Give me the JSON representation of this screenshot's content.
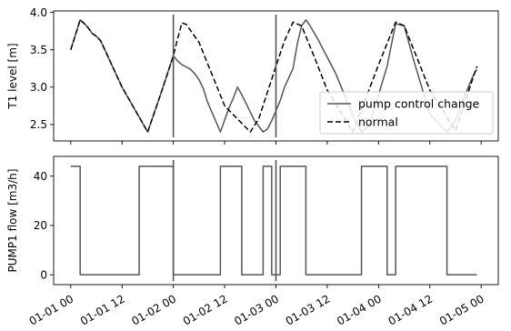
{
  "chart_data": [
    {
      "type": "line",
      "ylabel": "T1 level [m]",
      "ylim": [
        2.28,
        4.02
      ],
      "yticks": [
        "2.5",
        "3.0",
        "3.5",
        "4.0"
      ],
      "ytick_values": [
        2.5,
        3.0,
        3.5,
        4.0
      ],
      "xlim_hours": [
        -4,
        100
      ],
      "x_unit": "hours since 01-01 00",
      "events_hours": [
        24,
        48
      ],
      "legend": {
        "placement": "lower right"
      },
      "series": [
        {
          "name": "pump control change",
          "color": "#555555",
          "dash": "solid",
          "x": [
            0,
            2.2,
            3,
            4,
            5,
            6,
            7,
            12,
            16,
            18,
            21,
            24,
            25,
            26,
            27,
            28,
            29,
            30,
            31,
            32,
            35,
            37,
            38,
            39,
            40,
            43,
            45,
            46,
            47,
            49,
            50,
            52,
            53,
            54,
            55,
            56,
            57,
            58,
            62,
            64,
            66,
            68,
            69,
            70,
            74,
            76,
            78,
            80,
            82,
            84,
            88,
            90,
            92,
            94,
            95
          ],
          "y": [
            3.5,
            3.9,
            3.86,
            3.8,
            3.72,
            3.68,
            3.62,
            3.0,
            2.6,
            2.4,
            2.9,
            3.42,
            3.35,
            3.3,
            3.27,
            3.24,
            3.18,
            3.1,
            2.98,
            2.8,
            2.4,
            2.72,
            2.85,
            3.0,
            2.9,
            2.55,
            2.4,
            2.44,
            2.55,
            2.82,
            3.0,
            3.25,
            3.58,
            3.82,
            3.9,
            3.82,
            3.72,
            3.62,
            3.18,
            2.9,
            2.62,
            2.4,
            2.44,
            2.52,
            3.28,
            3.85,
            3.82,
            3.4,
            3.02,
            2.64,
            2.4,
            2.55,
            2.86,
            3.14,
            3.24
          ]
        },
        {
          "name": "normal",
          "color": "#000000",
          "dash": "dashed",
          "x": [
            0,
            2.2,
            3,
            4,
            5,
            6,
            7,
            12,
            16,
            18,
            21,
            24,
            25,
            26,
            27,
            30,
            36,
            42,
            44,
            48,
            50,
            52,
            54,
            57,
            60,
            66,
            72,
            76,
            78,
            84,
            90,
            95
          ],
          "y": [
            3.5,
            3.9,
            3.86,
            3.8,
            3.72,
            3.68,
            3.62,
            3.0,
            2.6,
            2.4,
            2.9,
            3.42,
            3.65,
            3.86,
            3.84,
            3.6,
            2.75,
            2.4,
            2.58,
            3.28,
            3.62,
            3.87,
            3.82,
            3.4,
            2.96,
            2.4,
            3.3,
            3.87,
            3.82,
            2.96,
            2.42,
            3.28
          ]
        }
      ]
    },
    {
      "type": "line",
      "ylabel": "PUMP1 flow [m3/h]",
      "ylim": [
        -4,
        48
      ],
      "yticks": [
        "0",
        "20",
        "40"
      ],
      "ytick_values": [
        0,
        20,
        40
      ],
      "xlim_hours": [
        -4,
        100
      ],
      "x_unit": "hours since 01-01 00",
      "events_hours": [
        24,
        48
      ],
      "xticks": [
        "01-01 00",
        "01-01 12",
        "01-02 00",
        "01-02 12",
        "01-03 00",
        "01-03 12",
        "01-04 00",
        "01-04 12",
        "01-05 00"
      ],
      "xtick_values": [
        0,
        12,
        24,
        36,
        48,
        60,
        72,
        84,
        96
      ],
      "series": [
        {
          "name": "pump control change",
          "color": "#555555",
          "dash": "solid",
          "x": [
            0,
            2.2,
            2.2,
            16,
            16,
            24,
            24,
            35,
            35,
            40,
            40,
            45,
            45,
            47,
            47,
            49,
            49,
            55,
            55,
            68,
            68,
            74,
            74,
            76,
            76,
            88,
            88,
            95
          ],
          "y": [
            44,
            44,
            0,
            0,
            44,
            44,
            0,
            0,
            44,
            44,
            0,
            0,
            44,
            44,
            0,
            0,
            44,
            44,
            0,
            0,
            44,
            44,
            0,
            0,
            44,
            44,
            0,
            0
          ]
        }
      ]
    }
  ]
}
